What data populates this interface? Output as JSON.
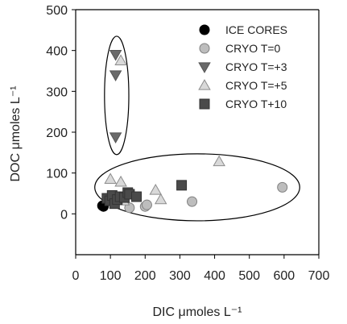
{
  "chart_data": {
    "type": "scatter",
    "title": "",
    "xlabel": "DIC μmoles L⁻¹",
    "ylabel": "DOC μmoles L⁻¹",
    "xlim": [
      0,
      700
    ],
    "ylim": [
      -100,
      500
    ],
    "x_ticks": [
      0,
      100,
      200,
      300,
      400,
      500,
      600,
      700
    ],
    "y_ticks": [
      0,
      100,
      200,
      300,
      400,
      500
    ],
    "grid": false,
    "legend_position": "top-right",
    "series": [
      {
        "name": "ICE CORES",
        "marker": "circle",
        "fill": "#000000",
        "stroke": "#000000",
        "points": [
          [
            80,
            18
          ],
          [
            77,
            20
          ]
        ]
      },
      {
        "name": "CRYO T=0",
        "marker": "circle",
        "fill": "#bdbdbd",
        "stroke": "#808080",
        "points": [
          [
            155,
            15
          ],
          [
            200,
            18
          ],
          [
            205,
            22
          ],
          [
            335,
            30
          ],
          [
            595,
            65
          ]
        ]
      },
      {
        "name": "CRYO T=+3",
        "marker": "triangle-down",
        "fill": "#6a6a6a",
        "stroke": "#555555",
        "points": [
          [
            115,
            390
          ],
          [
            115,
            340
          ],
          [
            115,
            188
          ]
        ]
      },
      {
        "name": "CRYO T=+5",
        "marker": "triangle-up",
        "fill": "#d9d9d9",
        "stroke": "#8c8c8c",
        "points": [
          [
            130,
            375
          ],
          [
            100,
            85
          ],
          [
            130,
            78
          ],
          [
            138,
            32
          ],
          [
            230,
            58
          ],
          [
            245,
            35
          ],
          [
            413,
            128
          ]
        ]
      },
      {
        "name": "CRYO T+10",
        "marker": "square",
        "fill": "#4a4a4a",
        "stroke": "#333333",
        "points": [
          [
            90,
            38
          ],
          [
            98,
            32
          ],
          [
            105,
            45
          ],
          [
            112,
            25
          ],
          [
            120,
            35
          ],
          [
            128,
            42
          ],
          [
            140,
            40
          ],
          [
            150,
            52
          ],
          [
            155,
            48
          ],
          [
            175,
            42
          ],
          [
            305,
            70
          ]
        ]
      }
    ],
    "annotations": [
      {
        "shape": "ellipse",
        "cx": 118,
        "cy": 290,
        "rx": 35,
        "ry": 145
      },
      {
        "shape": "ellipse",
        "cx": 350,
        "cy": 65,
        "rx": 295,
        "ry": 82
      }
    ]
  }
}
